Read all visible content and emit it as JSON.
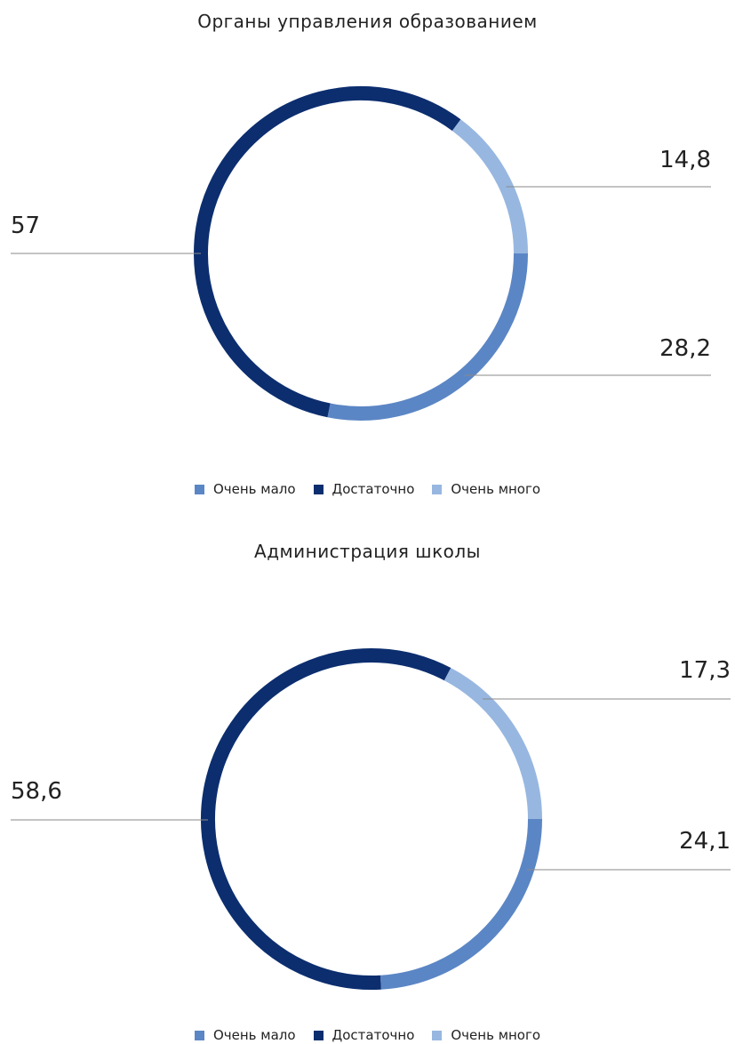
{
  "legend": {
    "items": [
      {
        "label": "Очень мало",
        "color": "#5b86c5"
      },
      {
        "label": "Достаточно",
        "color": "#0c2e6f"
      },
      {
        "label": "Очень много",
        "color": "#97b7e0"
      }
    ]
  },
  "chart_data": [
    {
      "type": "pie",
      "title": "Органы управления образованием",
      "categories": [
        "Очень мало",
        "Достаточно",
        "Очень много"
      ],
      "values": [
        28.2,
        57,
        14.8
      ],
      "value_labels": [
        "28,2",
        "57",
        "14,8"
      ],
      "colors": [
        "#5b86c5",
        "#0c2e6f",
        "#97b7e0"
      ],
      "style": "donut-ring",
      "legend_position": "bottom"
    },
    {
      "type": "pie",
      "title": "Администрация школы",
      "categories": [
        "Очень мало",
        "Достаточно",
        "Очень много"
      ],
      "values": [
        24.1,
        58.6,
        17.3
      ],
      "value_labels": [
        "24,1",
        "58,6",
        "17,3"
      ],
      "colors": [
        "#5b86c5",
        "#0c2e6f",
        "#97b7e0"
      ],
      "style": "donut-ring",
      "legend_position": "bottom"
    }
  ]
}
